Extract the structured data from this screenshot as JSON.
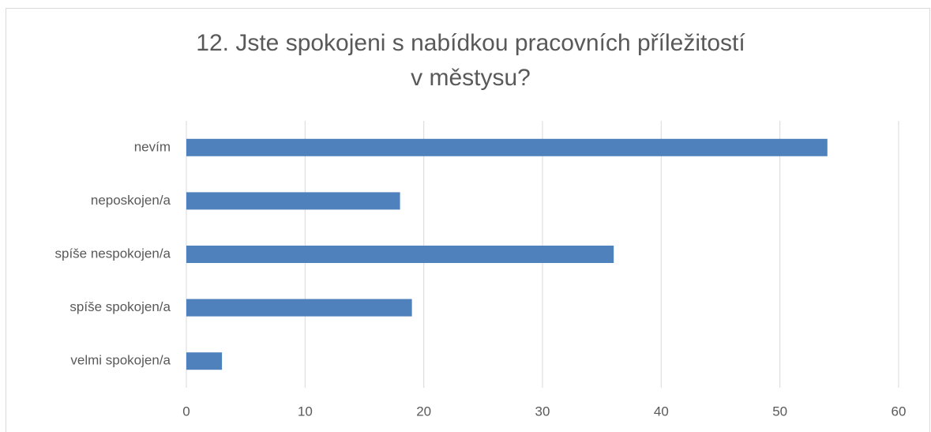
{
  "chart_data": {
    "type": "bar",
    "orientation": "horizontal",
    "title": [
      "12. Jste spokojeni s nabídkou pracovních příležitostí",
      "v městysu?"
    ],
    "categories": [
      "nevím",
      "neposkojen/a",
      "spíše nespokojen/a",
      "spíše spokojen/a",
      "velmi spokojen/a"
    ],
    "values": [
      54,
      18,
      36,
      19,
      3
    ],
    "color": "#4f81bd",
    "xlim": [
      0,
      60
    ],
    "xticks": [
      0,
      10,
      20,
      30,
      40,
      50,
      60
    ],
    "grid": true
  }
}
